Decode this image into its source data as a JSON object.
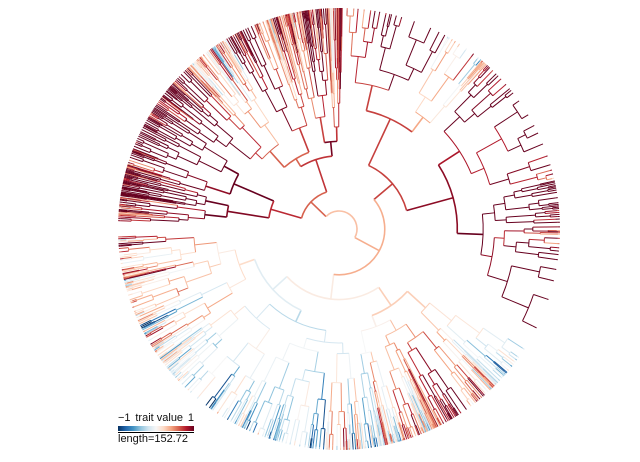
{
  "figure": {
    "type": "circular phylogenetic tree",
    "branch_coloring": "trait value (diverging blue-white-red)"
  },
  "legend": {
    "min_label": "−1",
    "title": "trait value",
    "max_label": "1",
    "range": [
      -1,
      1
    ],
    "scale_label": "length=152.72"
  },
  "colors": {
    "palette": [
      "#053061",
      "#2166ac",
      "#4393c3",
      "#92c5de",
      "#d1e5f0",
      "#f7f7f7",
      "#fddbc7",
      "#f4a582",
      "#d6604d",
      "#b2182b",
      "#67001f"
    ]
  }
}
